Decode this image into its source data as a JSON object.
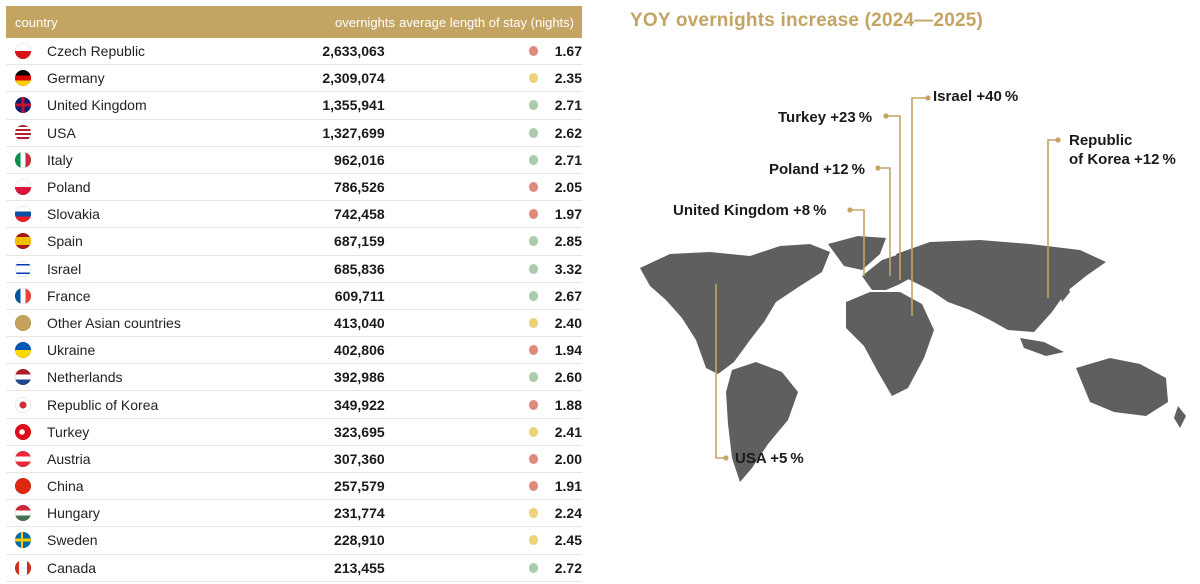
{
  "table": {
    "headers": {
      "country": "country",
      "overnights": "overnights",
      "stay": "average length of stay (nights)"
    },
    "status_colors": {
      "red": "#e0897d",
      "yellow": "#ecd27a",
      "green": "#a9ccab"
    },
    "rows": [
      {
        "country": "Czech Republic",
        "overnights": "2,633,063",
        "stay": "1.67",
        "status": "red",
        "flag": "czech"
      },
      {
        "country": "Germany",
        "overnights": "2,309,074",
        "stay": "2.35",
        "status": "yellow",
        "flag": "germany"
      },
      {
        "country": "United Kingdom",
        "overnights": "1,355,941",
        "stay": "2.71",
        "status": "green",
        "flag": "uk"
      },
      {
        "country": "USA",
        "overnights": "1,327,699",
        "stay": "2.62",
        "status": "green",
        "flag": "usa"
      },
      {
        "country": "Italy",
        "overnights": "962,016",
        "stay": "2.71",
        "status": "green",
        "flag": "italy"
      },
      {
        "country": "Poland",
        "overnights": "786,526",
        "stay": "2.05",
        "status": "red",
        "flag": "poland"
      },
      {
        "country": "Slovakia",
        "overnights": "742,458",
        "stay": "1.97",
        "status": "red",
        "flag": "slovakia"
      },
      {
        "country": "Spain",
        "overnights": "687,159",
        "stay": "2.85",
        "status": "green",
        "flag": "spain"
      },
      {
        "country": "Israel",
        "overnights": "685,836",
        "stay": "3.32",
        "status": "green",
        "flag": "israel"
      },
      {
        "country": "France",
        "overnights": "609,711",
        "stay": "2.67",
        "status": "green",
        "flag": "france"
      },
      {
        "country": "Other Asian countries",
        "overnights": "413,040",
        "stay": "2.40",
        "status": "yellow",
        "flag": "other"
      },
      {
        "country": "Ukraine",
        "overnights": "402,806",
        "stay": "1.94",
        "status": "red",
        "flag": "ukraine"
      },
      {
        "country": "Netherlands",
        "overnights": "392,986",
        "stay": "2.60",
        "status": "green",
        "flag": "netherlands"
      },
      {
        "country": "Republic of Korea",
        "overnights": "349,922",
        "stay": "1.88",
        "status": "red",
        "flag": "korea"
      },
      {
        "country": "Turkey",
        "overnights": "323,695",
        "stay": "2.41",
        "status": "yellow",
        "flag": "turkey"
      },
      {
        "country": "Austria",
        "overnights": "307,360",
        "stay": "2.00",
        "status": "red",
        "flag": "austria"
      },
      {
        "country": "China",
        "overnights": "257,579",
        "stay": "1.91",
        "status": "red",
        "flag": "china"
      },
      {
        "country": "Hungary",
        "overnights": "231,774",
        "stay": "2.24",
        "status": "yellow",
        "flag": "hungary"
      },
      {
        "country": "Sweden",
        "overnights": "228,910",
        "stay": "2.45",
        "status": "yellow",
        "flag": "sweden"
      },
      {
        "country": "Canada",
        "overnights": "213,455",
        "stay": "2.72",
        "status": "green",
        "flag": "canada"
      }
    ]
  },
  "map": {
    "title": "YOY overnights increase (2024—2025)",
    "accent": "#c4a463",
    "land_color": "#5f5f5f",
    "labels": {
      "israel": "Israel +40 %",
      "turkey": "Turkey +23 %",
      "poland": "Poland +12 %",
      "uk": "United Kingdom +8 %",
      "korea_line1": "Republic",
      "korea_line2": "of Korea +12 %",
      "usa": "USA +5 %"
    }
  },
  "chart_data": {
    "type": "table",
    "columns": [
      "country",
      "overnights",
      "average length of stay (nights)"
    ],
    "rows": [
      [
        "Czech Republic",
        2633063,
        1.67
      ],
      [
        "Germany",
        2309074,
        2.35
      ],
      [
        "United Kingdom",
        1355941,
        2.71
      ],
      [
        "USA",
        1327699,
        2.62
      ],
      [
        "Italy",
        962016,
        2.71
      ],
      [
        "Poland",
        786526,
        2.05
      ],
      [
        "Slovakia",
        742458,
        1.97
      ],
      [
        "Spain",
        687159,
        2.85
      ],
      [
        "Israel",
        685836,
        3.32
      ],
      [
        "France",
        609711,
        2.67
      ],
      [
        "Other Asian countries",
        413040,
        2.4
      ],
      [
        "Ukraine",
        402806,
        1.94
      ],
      [
        "Netherlands",
        392986,
        2.6
      ],
      [
        "Republic of Korea",
        349922,
        1.88
      ],
      [
        "Turkey",
        323695,
        2.41
      ],
      [
        "Austria",
        307360,
        2.0
      ],
      [
        "China",
        257579,
        1.91
      ],
      [
        "Hungary",
        231774,
        2.24
      ],
      [
        "Sweden",
        228910,
        2.45
      ],
      [
        "Canada",
        213455,
        2.72
      ]
    ],
    "yoy_increase_pct": {
      "Israel": 40,
      "Turkey": 23,
      "Poland": 12,
      "United Kingdom": 8,
      "Republic of Korea": 12,
      "USA": 5
    }
  }
}
